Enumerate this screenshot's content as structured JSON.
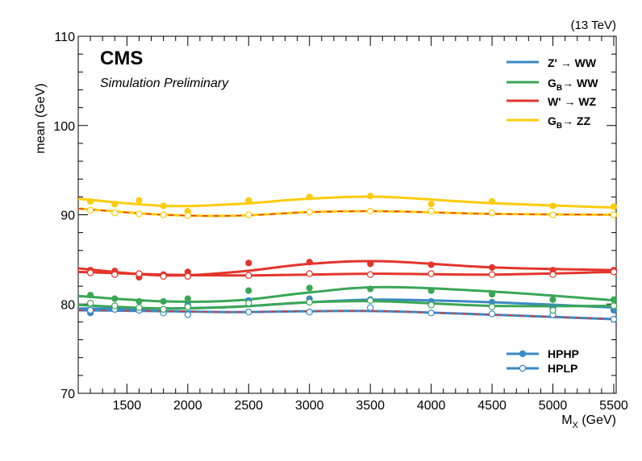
{
  "chart_data": {
    "type": "scatter",
    "energy_label": "(13 TeV)",
    "experiment": "CMS",
    "subtitle": "Simulation Preliminary",
    "xlabel": "M",
    "xlabel_sub": "X",
    "xlabel_unit": " (GeV)",
    "ylabel": "mean (GeV)",
    "xlim": [
      1100,
      5520
    ],
    "ylim": [
      70,
      110
    ],
    "x_ticks": [
      1500,
      2000,
      2500,
      3000,
      3500,
      4000,
      4500,
      5000,
      5500
    ],
    "y_ticks": [
      70,
      80,
      90,
      100,
      110
    ],
    "grid": false,
    "legend_placement": "top-right",
    "x": [
      1200,
      1400,
      1600,
      1800,
      2000,
      2500,
      3000,
      3500,
      4000,
      4500,
      5000,
      5500
    ],
    "series": [
      {
        "name": "Z' → WW",
        "name_main": "Z' ",
        "name_arrow": "→",
        "name_tail": " WW",
        "color": "#3a8ac4",
        "hphp": [
          79.0,
          79.6,
          79.4,
          79.1,
          79.9,
          80.4,
          80.6,
          80.5,
          80.3,
          80.2,
          79.5,
          79.3
        ],
        "hplp": [
          79.3,
          79.4,
          79.3,
          79.0,
          78.8,
          79.1,
          79.1,
          79.6,
          79.0,
          78.9,
          78.8,
          78.3
        ]
      },
      {
        "name": "G_B → WW",
        "name_main": "G",
        "name_sub": "B",
        "name_arrow": "→",
        "name_tail": " WW",
        "color": "#3aa656",
        "hphp": [
          81.0,
          80.6,
          80.3,
          80.3,
          80.6,
          81.5,
          81.8,
          81.7,
          81.5,
          81.1,
          80.5,
          80.5
        ],
        "hplp": [
          80.1,
          79.8,
          79.6,
          79.4,
          79.7,
          80.1,
          80.2,
          80.4,
          79.9,
          79.7,
          79.3,
          79.8
        ]
      },
      {
        "name": "W' → WZ",
        "name_main": "W' ",
        "name_arrow": "→",
        "name_tail": " WZ",
        "color": "#e3352c",
        "hphp": [
          83.8,
          83.7,
          83.0,
          83.3,
          83.6,
          84.6,
          84.7,
          84.5,
          84.4,
          84.1,
          83.8,
          83.8
        ],
        "hplp": [
          83.5,
          83.3,
          83.4,
          83.1,
          83.1,
          83.2,
          83.4,
          83.3,
          83.4,
          83.3,
          83.3,
          83.6
        ]
      },
      {
        "name": "G_B → ZZ",
        "name_main": "G",
        "name_sub": "B",
        "name_arrow": "→",
        "name_tail": " ZZ",
        "color": "#fccc0d",
        "hphp": [
          91.5,
          91.2,
          91.6,
          91.0,
          90.4,
          91.6,
          92.0,
          92.1,
          91.2,
          91.5,
          91.0,
          90.9
        ],
        "hplp": [
          90.5,
          90.2,
          90.1,
          90.0,
          89.9,
          90.0,
          90.3,
          90.4,
          90.4,
          90.2,
          90.0,
          90.0
        ]
      }
    ],
    "fits": {
      "Z' → WW": {
        "hphp": [
          79.5,
          79.5,
          79.7,
          80.2,
          80.5,
          80.2,
          79.6
        ],
        "hplp": [
          79.3,
          79.2,
          79.1,
          79.2,
          79.2,
          78.8,
          78.3
        ]
      },
      "G_B → WW": {
        "hphp": [
          80.9,
          80.3,
          80.4,
          81.3,
          81.9,
          81.4,
          80.4
        ],
        "hplp": [
          79.9,
          79.5,
          79.7,
          80.2,
          80.3,
          79.8,
          79.8
        ]
      },
      "W' → WZ": {
        "hphp": [
          84.0,
          83.2,
          83.6,
          84.5,
          84.8,
          84.1,
          83.8
        ],
        "hplp": [
          83.6,
          83.3,
          83.2,
          83.3,
          83.4,
          83.3,
          83.6
        ]
      },
      "G_B → ZZ": {
        "hphp": [
          91.8,
          91.0,
          91.2,
          91.8,
          92.0,
          91.3,
          90.8
        ],
        "hplp": [
          90.7,
          90.0,
          89.9,
          90.3,
          90.4,
          90.1,
          90.0
        ]
      },
      "fit_x": [
        1100,
        1800,
        2400,
        3000,
        3600,
        4500,
        5520
      ]
    },
    "dashed_overlay": {
      "color": "#e3352c",
      "on_series": [
        "Z' → WW",
        "G_B → ZZ"
      ],
      "curve": "hplp"
    },
    "marker_legend": [
      {
        "label": "HPHP",
        "marker": "filled-circle"
      },
      {
        "label": "HPLP",
        "marker": "open-circle"
      }
    ]
  }
}
